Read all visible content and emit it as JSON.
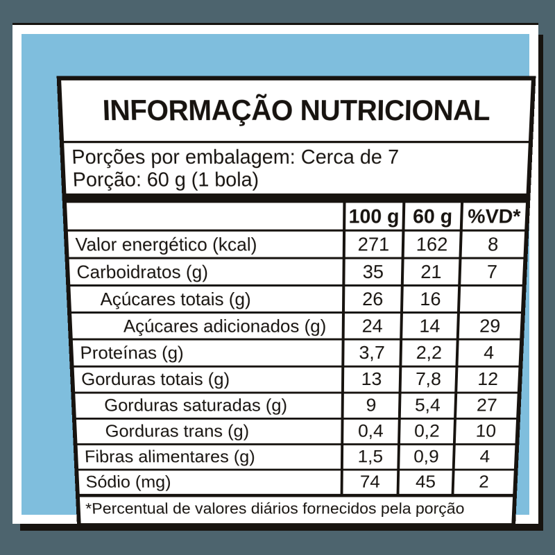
{
  "colors": {
    "background_gray": "#4d646e",
    "panel_blue": "#7fbedd",
    "frame_white": "#ffffff",
    "ink_black": "#17130f"
  },
  "label": {
    "title": "INFORMAÇÃO NUTRICIONAL",
    "servings_line1": "Porções por embalagem: Cerca de 7",
    "servings_line2": "Porção: 60 g (1 bola)",
    "columns": [
      "100 g",
      "60 g",
      "%VD*"
    ],
    "rows": [
      {
        "name": "Valor energético (kcal)",
        "v100": "271",
        "v60": "162",
        "vd": "8"
      },
      {
        "name": "Carboidratos (g)",
        "v100": "35",
        "v60": "21",
        "vd": "7"
      },
      {
        "name": "Açúcares totais (g)",
        "v100": "26",
        "v60": "16",
        "vd": ""
      },
      {
        "name": "Açúcares adicionados (g)",
        "v100": "24",
        "v60": "14",
        "vd": "29"
      },
      {
        "name": "Proteínas (g)",
        "v100": "3,7",
        "v60": "2,2",
        "vd": "4"
      },
      {
        "name": "Gorduras totais (g)",
        "v100": "13",
        "v60": "7,8",
        "vd": "12"
      },
      {
        "name": "Gorduras saturadas (g)",
        "v100": "9",
        "v60": "5,4",
        "vd": "27"
      },
      {
        "name": "Gorduras trans (g)",
        "v100": "0,4",
        "v60": "0,2",
        "vd": "10"
      },
      {
        "name": "Fibras alimentares (g)",
        "v100": "1,5",
        "v60": "0,9",
        "vd": "4"
      },
      {
        "name": "Sódio (mg)",
        "v100": "74",
        "v60": "45",
        "vd": "2"
      }
    ],
    "footnote": "*Percentual de valores diários fornecidos pela porção"
  }
}
